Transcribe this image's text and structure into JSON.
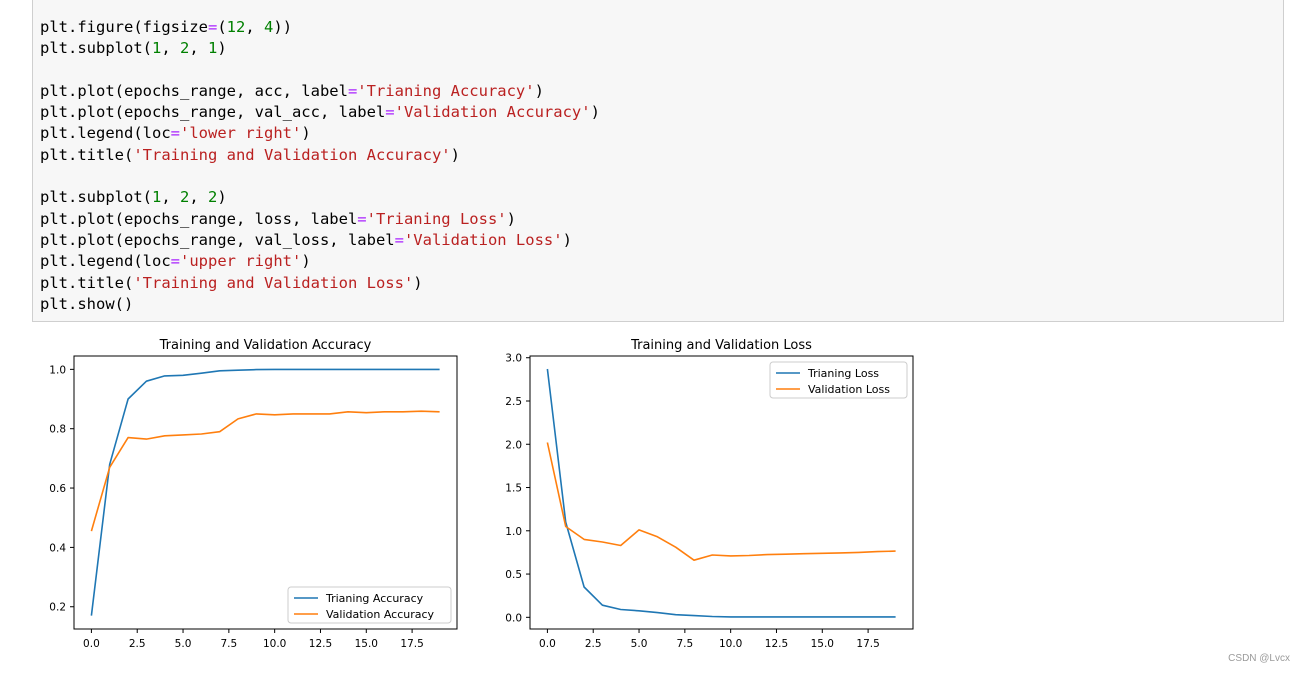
{
  "code_cell": {
    "lines": [
      [
        {
          "t": "plt.figure(figsize"
        },
        {
          "t": "=",
          "c": "o"
        },
        {
          "t": "("
        },
        {
          "t": "12",
          "c": "n"
        },
        {
          "t": ", "
        },
        {
          "t": "4",
          "c": "n"
        },
        {
          "t": "))"
        }
      ],
      [
        {
          "t": "plt.subplot("
        },
        {
          "t": "1",
          "c": "n"
        },
        {
          "t": ", "
        },
        {
          "t": "2",
          "c": "n"
        },
        {
          "t": ", "
        },
        {
          "t": "1",
          "c": "n"
        },
        {
          "t": ")"
        }
      ],
      [],
      [
        {
          "t": "plt.plot(epochs_range, acc, label"
        },
        {
          "t": "=",
          "c": "o"
        },
        {
          "t": "'Trianing Accuracy'",
          "c": "s"
        },
        {
          "t": ")"
        }
      ],
      [
        {
          "t": "plt.plot(epochs_range, val_acc, label"
        },
        {
          "t": "=",
          "c": "o"
        },
        {
          "t": "'Validation Accuracy'",
          "c": "s"
        },
        {
          "t": ")"
        }
      ],
      [
        {
          "t": "plt.legend(loc"
        },
        {
          "t": "=",
          "c": "o"
        },
        {
          "t": "'lower right'",
          "c": "s"
        },
        {
          "t": ")"
        }
      ],
      [
        {
          "t": "plt.title("
        },
        {
          "t": "'Training and Validation Accuracy'",
          "c": "s"
        },
        {
          "t": ")"
        }
      ],
      [],
      [
        {
          "t": "plt.subplot("
        },
        {
          "t": "1",
          "c": "n"
        },
        {
          "t": ", "
        },
        {
          "t": "2",
          "c": "n"
        },
        {
          "t": ", "
        },
        {
          "t": "2",
          "c": "n"
        },
        {
          "t": ")"
        }
      ],
      [
        {
          "t": "plt.plot(epochs_range, loss, label"
        },
        {
          "t": "=",
          "c": "o"
        },
        {
          "t": "'Trianing Loss'",
          "c": "s"
        },
        {
          "t": ")"
        }
      ],
      [
        {
          "t": "plt.plot(epochs_range, val_loss, label"
        },
        {
          "t": "=",
          "c": "o"
        },
        {
          "t": "'Validation Loss'",
          "c": "s"
        },
        {
          "t": ")"
        }
      ],
      [
        {
          "t": "plt.legend(loc"
        },
        {
          "t": "=",
          "c": "o"
        },
        {
          "t": "'upper right'",
          "c": "s"
        },
        {
          "t": ")"
        }
      ],
      [
        {
          "t": "plt.title("
        },
        {
          "t": "'Training and Validation Loss'",
          "c": "s"
        },
        {
          "t": ")"
        }
      ],
      [
        {
          "t": "plt.show()"
        }
      ]
    ]
  },
  "colors": {
    "series1": "#1f77b4",
    "series2": "#ff7f0e"
  },
  "chart_data": [
    {
      "type": "line",
      "title": "Training and Validation Accuracy",
      "xlabel": "",
      "ylabel": "",
      "xlim": [
        -0.95,
        19.95
      ],
      "ylim": [
        0.125,
        1.045
      ],
      "xticks": [
        "0.0",
        "2.5",
        "5.0",
        "7.5",
        "10.0",
        "12.5",
        "15.0",
        "17.5"
      ],
      "yticks": [
        "0.2",
        "0.4",
        "0.6",
        "0.8",
        "1.0"
      ],
      "legend_loc": "lower right",
      "x": [
        0,
        1,
        2,
        3,
        4,
        5,
        6,
        7,
        8,
        9,
        10,
        11,
        12,
        13,
        14,
        15,
        16,
        17,
        18,
        19
      ],
      "series": [
        {
          "name": "Trianing Accuracy",
          "values": [
            0.17,
            0.68,
            0.9,
            0.96,
            0.978,
            0.98,
            0.987,
            0.995,
            0.997,
            0.999,
            1.0,
            1.0,
            1.0,
            1.0,
            1.0,
            1.0,
            1.0,
            1.0,
            1.0,
            1.0
          ]
        },
        {
          "name": "Validation Accuracy",
          "values": [
            0.455,
            0.67,
            0.77,
            0.765,
            0.776,
            0.779,
            0.782,
            0.79,
            0.833,
            0.85,
            0.847,
            0.85,
            0.85,
            0.85,
            0.857,
            0.854,
            0.857,
            0.857,
            0.859,
            0.857
          ]
        }
      ]
    },
    {
      "type": "line",
      "title": "Training and Validation Loss",
      "xlabel": "",
      "ylabel": "",
      "xlim": [
        -0.95,
        19.95
      ],
      "ylim": [
        -0.135,
        3.02
      ],
      "xticks": [
        "0.0",
        "2.5",
        "5.0",
        "7.5",
        "10.0",
        "12.5",
        "15.0",
        "17.5"
      ],
      "yticks": [
        "0.0",
        "0.5",
        "1.0",
        "1.5",
        "2.0",
        "2.5",
        "3.0"
      ],
      "legend_loc": "upper right",
      "x": [
        0,
        1,
        2,
        3,
        4,
        5,
        6,
        7,
        8,
        9,
        10,
        11,
        12,
        13,
        14,
        15,
        16,
        17,
        18,
        19
      ],
      "series": [
        {
          "name": "Trianing Loss",
          "values": [
            2.87,
            1.1,
            0.35,
            0.14,
            0.09,
            0.075,
            0.055,
            0.03,
            0.02,
            0.01,
            0.005,
            0.005,
            0.005,
            0.005,
            0.005,
            0.005,
            0.005,
            0.005,
            0.005,
            0.005
          ]
        },
        {
          "name": "Validation Loss",
          "values": [
            2.02,
            1.05,
            0.9,
            0.87,
            0.83,
            1.01,
            0.93,
            0.81,
            0.66,
            0.72,
            0.71,
            0.715,
            0.725,
            0.73,
            0.735,
            0.74,
            0.745,
            0.75,
            0.76,
            0.765
          ]
        }
      ]
    }
  ],
  "watermark": "CSDN @Lvcx"
}
